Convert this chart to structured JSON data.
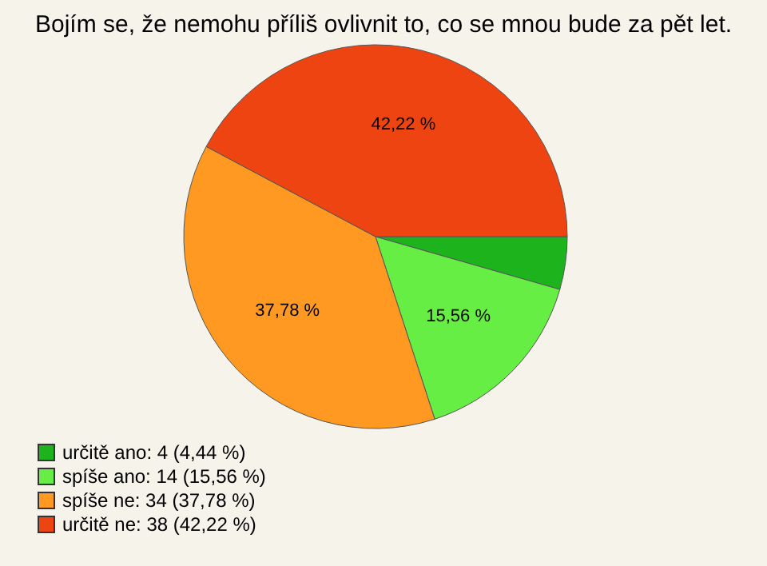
{
  "chart_data": {
    "type": "pie",
    "title": "Bojím se, že nemohu příliš ovlivnit to, co se mnou bude za pět let.",
    "categories": [
      "určitě ano: 4 (4,44 %)",
      "spíše ano: 14 (15,56 %)",
      "spíše ne: 34 (37,78 %)",
      "určitě ne: 38 (42,22 %)"
    ],
    "values": [
      4.44,
      15.56,
      37.78,
      42.22
    ],
    "colors": [
      "#1db31d",
      "#66ee44",
      "#ff9922",
      "#ee4411"
    ],
    "value_labels": [
      null,
      "15,56 %",
      "37,78 %",
      "42,22 %"
    ],
    "legend": "bottom left"
  }
}
